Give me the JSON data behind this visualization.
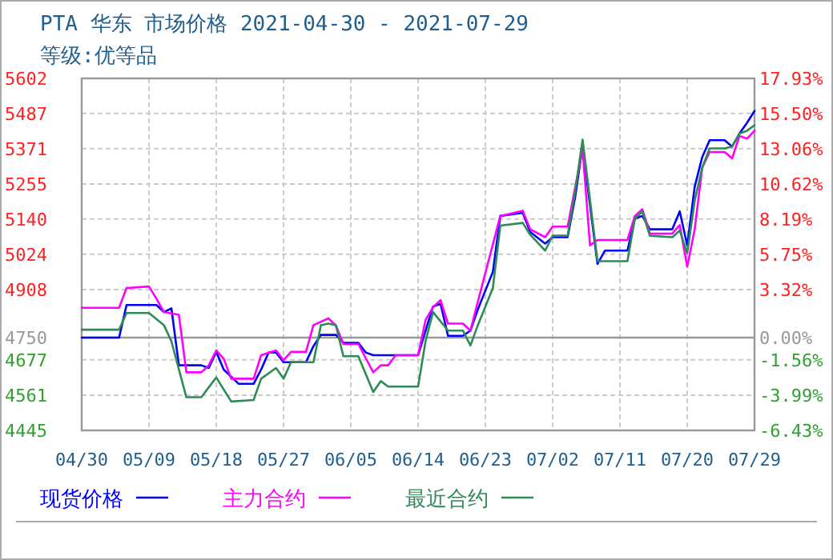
{
  "chart_data": {
    "type": "line",
    "title": "PTA 华东 市场价格 2021-04-30 - 2021-07-29",
    "subtitle": "等级:优等品",
    "xlim": [
      "2021-04-30",
      "2021-07-29"
    ],
    "xticks": [
      {
        "value": "2021-04-30",
        "label": "04/30"
      },
      {
        "value": "2021-05-09",
        "label": "05/09"
      },
      {
        "value": "2021-05-18",
        "label": "05/18"
      },
      {
        "value": "2021-05-27",
        "label": "05/27"
      },
      {
        "value": "2021-06-05",
        "label": "06/05"
      },
      {
        "value": "2021-06-14",
        "label": "06/14"
      },
      {
        "value": "2021-06-23",
        "label": "06/23"
      },
      {
        "value": "2021-07-02",
        "label": "07/02"
      },
      {
        "value": "2021-07-11",
        "label": "07/11"
      },
      {
        "value": "2021-07-20",
        "label": "07/20"
      },
      {
        "value": "2021-07-29",
        "label": "07/29"
      }
    ],
    "ylim": [
      4445,
      5602
    ],
    "yticks": [
      4445,
      4561,
      4677,
      4750,
      4908,
      5024,
      5140,
      5255,
      5371,
      5487,
      5602
    ],
    "y2lim": [
      -6.43,
      17.93
    ],
    "y2ticks": [
      {
        "value": -6.43,
        "label": "-6.43%"
      },
      {
        "value": -3.99,
        "label": "-3.99%"
      },
      {
        "value": -1.56,
        "label": "-1.56%"
      },
      {
        "value": 0,
        "label": "0.00%"
      },
      {
        "value": 3.32,
        "label": "3.32%"
      },
      {
        "value": 5.75,
        "label": "5.75%"
      },
      {
        "value": 8.19,
        "label": "8.19%"
      },
      {
        "value": 10.62,
        "label": "10.62%"
      },
      {
        "value": 13.06,
        "label": "13.06%"
      },
      {
        "value": 15.5,
        "label": "15.50%"
      },
      {
        "value": 17.93,
        "label": "17.93%"
      }
    ],
    "ref_lines": [
      {
        "axis": "y",
        "value": 4750,
        "color": "#999999"
      }
    ],
    "grid": true,
    "legend": "bottom",
    "marker": "none",
    "line_style": "solid",
    "series": [
      {
        "name": "现货价格",
        "color": "#0000ff",
        "x": [
          "2021-04-30",
          "2021-05-05",
          "2021-05-06",
          "2021-05-10",
          "2021-05-11",
          "2021-05-12",
          "2021-05-13",
          "2021-05-16",
          "2021-05-17",
          "2021-05-18",
          "2021-05-19",
          "2021-05-21",
          "2021-05-23",
          "2021-05-24",
          "2021-05-25",
          "2021-05-26",
          "2021-05-27",
          "2021-05-30",
          "2021-05-31",
          "2021-06-01",
          "2021-06-03",
          "2021-06-04",
          "2021-06-06",
          "2021-06-07",
          "2021-06-08",
          "2021-06-14",
          "2021-06-15",
          "2021-06-16",
          "2021-06-17",
          "2021-06-18",
          "2021-06-20",
          "2021-06-21",
          "2021-06-22",
          "2021-06-24",
          "2021-06-25",
          "2021-06-28",
          "2021-06-29",
          "2021-07-01",
          "2021-07-02",
          "2021-07-04",
          "2021-07-05",
          "2021-07-06",
          "2021-07-08",
          "2021-07-09",
          "2021-07-12",
          "2021-07-13",
          "2021-07-14",
          "2021-07-15",
          "2021-07-18",
          "2021-07-19",
          "2021-07-20",
          "2021-07-21",
          "2021-07-22",
          "2021-07-23",
          "2021-07-25",
          "2021-07-26",
          "2021-07-27",
          "2021-07-28",
          "2021-07-29"
        ],
        "values": [
          4750,
          4750,
          4857,
          4857,
          4834,
          4846,
          4659,
          4659,
          4650,
          4703,
          4645,
          4598,
          4598,
          4645,
          4701,
          4701,
          4669,
          4669,
          4722,
          4759,
          4759,
          4733,
          4733,
          4701,
          4692,
          4692,
          4773,
          4852,
          4861,
          4756,
          4756,
          4773,
          4843,
          4966,
          5150,
          5160,
          5097,
          5059,
          5080,
          5080,
          5211,
          5378,
          4992,
          5036,
          5036,
          5142,
          5150,
          5106,
          5106,
          5165,
          5053,
          5246,
          5343,
          5399,
          5399,
          5378,
          5421,
          5456,
          5495
        ]
      },
      {
        "name": "主力合约",
        "color": "#ff00ff",
        "x": [
          "2021-04-30",
          "2021-05-05",
          "2021-05-06",
          "2021-05-09",
          "2021-05-10",
          "2021-05-11",
          "2021-05-13",
          "2021-05-14",
          "2021-05-16",
          "2021-05-17",
          "2021-05-18",
          "2021-05-19",
          "2021-05-20",
          "2021-05-23",
          "2021-05-24",
          "2021-05-26",
          "2021-05-27",
          "2021-05-28",
          "2021-05-30",
          "2021-05-31",
          "2021-06-02",
          "2021-06-03",
          "2021-06-04",
          "2021-06-06",
          "2021-06-08",
          "2021-06-09",
          "2021-06-10",
          "2021-06-11",
          "2021-06-14",
          "2021-06-15",
          "2021-06-16",
          "2021-06-17",
          "2021-06-18",
          "2021-06-20",
          "2021-06-21",
          "2021-06-22",
          "2021-06-25",
          "2021-06-28",
          "2021-06-29",
          "2021-07-01",
          "2021-07-02",
          "2021-07-04",
          "2021-07-06",
          "2021-07-07",
          "2021-07-08",
          "2021-07-12",
          "2021-07-13",
          "2021-07-14",
          "2021-07-15",
          "2021-07-18",
          "2021-07-19",
          "2021-07-20",
          "2021-07-21",
          "2021-07-22",
          "2021-07-23",
          "2021-07-25",
          "2021-07-26",
          "2021-07-27",
          "2021-07-28",
          "2021-07-29"
        ],
        "values": [
          4848,
          4848,
          4913,
          4918,
          4878,
          4834,
          4825,
          4636,
          4636,
          4659,
          4708,
          4680,
          4615,
          4615,
          4692,
          4708,
          4676,
          4703,
          4703,
          4791,
          4813,
          4790,
          4729,
          4729,
          4636,
          4659,
          4659,
          4692,
          4692,
          4808,
          4850,
          4873,
          4796,
          4796,
          4773,
          4869,
          5150,
          5167,
          5106,
          5080,
          5115,
          5115,
          5369,
          5053,
          5071,
          5071,
          5150,
          5172,
          5092,
          5092,
          5120,
          4983,
          5106,
          5308,
          5360,
          5360,
          5339,
          5413,
          5404,
          5430
        ]
      },
      {
        "name": "最近合约",
        "color": "#2e8b57",
        "x": [
          "2021-04-30",
          "2021-05-05",
          "2021-05-06",
          "2021-05-09",
          "2021-05-11",
          "2021-05-12",
          "2021-05-14",
          "2021-05-16",
          "2021-05-18",
          "2021-05-20",
          "2021-05-23",
          "2021-05-24",
          "2021-05-26",
          "2021-05-27",
          "2021-05-28",
          "2021-05-31",
          "2021-06-01",
          "2021-06-02",
          "2021-06-03",
          "2021-06-04",
          "2021-06-06",
          "2021-06-08",
          "2021-06-09",
          "2021-06-10",
          "2021-06-14",
          "2021-06-15",
          "2021-06-16",
          "2021-06-18",
          "2021-06-20",
          "2021-06-21",
          "2021-06-22",
          "2021-06-24",
          "2021-06-25",
          "2021-06-28",
          "2021-06-29",
          "2021-07-01",
          "2021-07-02",
          "2021-07-04",
          "2021-07-05",
          "2021-07-06",
          "2021-07-08",
          "2021-07-12",
          "2021-07-13",
          "2021-07-14",
          "2021-07-15",
          "2021-07-18",
          "2021-07-19",
          "2021-07-20",
          "2021-07-21",
          "2021-07-22",
          "2021-07-23",
          "2021-07-25",
          "2021-07-26",
          "2021-07-27",
          "2021-07-28",
          "2021-07-29"
        ],
        "values": [
          4776,
          4776,
          4831,
          4831,
          4791,
          4738,
          4554,
          4554,
          4619,
          4540,
          4545,
          4615,
          4650,
          4615,
          4669,
          4669,
          4791,
          4796,
          4791,
          4689,
          4689,
          4571,
          4607,
          4589,
          4589,
          4739,
          4834,
          4773,
          4773,
          4724,
          4791,
          4913,
          5118,
          5127,
          5088,
          5036,
          5085,
          5085,
          5229,
          5401,
          5001,
          5001,
          5142,
          5164,
          5085,
          5080,
          5102,
          5027,
          5200,
          5308,
          5372,
          5372,
          5378,
          5421,
          5430,
          5448
        ]
      }
    ]
  }
}
